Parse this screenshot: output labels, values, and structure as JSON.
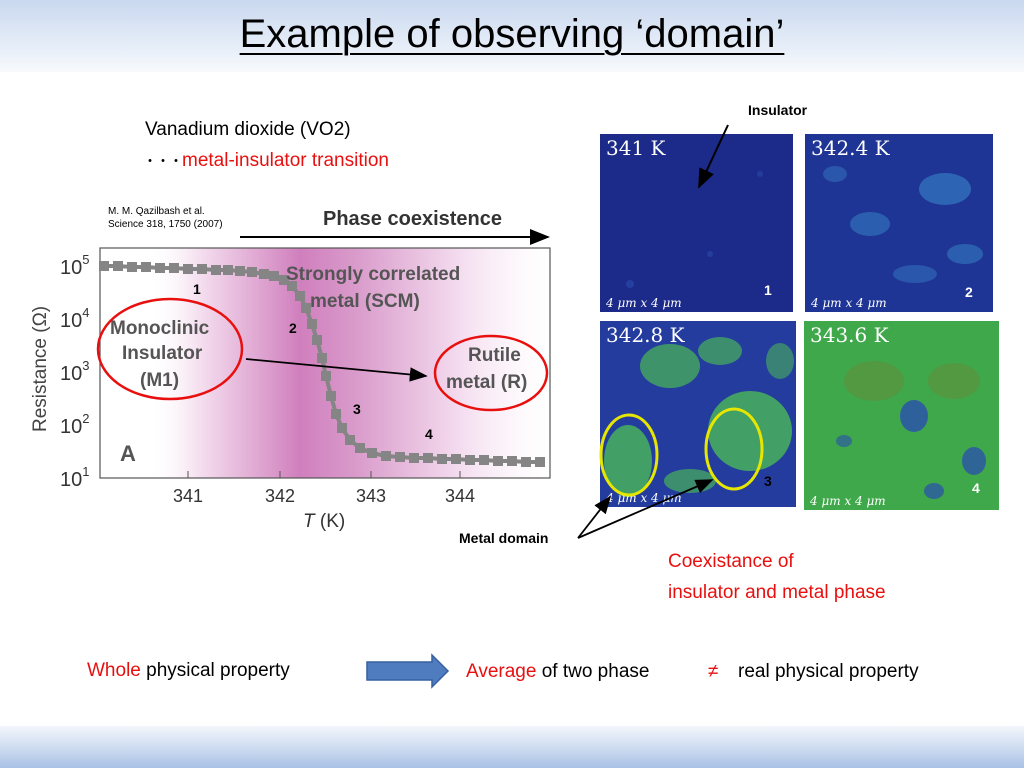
{
  "title": "Example of observing ‘domain’",
  "intro": {
    "line1": "Vanadium dioxide (VO2)",
    "dots": "・・・",
    "line2": "metal-insulator transition"
  },
  "reference": {
    "line1": "M. M. Qazilbash et al.",
    "line2": "Science 318, 1750 (2007)"
  },
  "graph": {
    "phase_label": "Phase coexistence",
    "scm_line1": "Strongly correlated",
    "scm_line2": "metal (SCM)",
    "m1_line1": "Monoclinic",
    "m1_line2": "Insulator",
    "m1_line3": "(M1)",
    "rutile_line1": "Rutile",
    "rutile_line2": "metal (R)",
    "panel_letter": "A",
    "ylabel": "Resistance (Ω)",
    "xlabel_var": "T",
    "xlabel_unit": " (K)",
    "yticks": [
      {
        "base": "10",
        "exp": "5"
      },
      {
        "base": "10",
        "exp": "4"
      },
      {
        "base": "10",
        "exp": "3"
      },
      {
        "base": "10",
        "exp": "2"
      },
      {
        "base": "10",
        "exp": "1"
      }
    ],
    "xticks": [
      "341",
      "342",
      "343",
      "344"
    ],
    "points": [
      "1",
      "2",
      "3",
      "4"
    ]
  },
  "micrographs": {
    "insulator_label": "Insulator",
    "metal_domain_label": "Metal domain",
    "scale_text": "4 μm x 4 μm",
    "panels": [
      {
        "temp": "341 K",
        "num": "1"
      },
      {
        "temp": "342.4 K",
        "num": "2"
      },
      {
        "temp": "342.8 K",
        "num": "3"
      },
      {
        "temp": "343.6 K",
        "num": "4"
      }
    ]
  },
  "coexistence": {
    "line1": "Coexistance of",
    "line2": "insulator and metal phase"
  },
  "conclusion": {
    "whole_red": "Whole",
    "whole_rest": " physical property",
    "average_red": "Average",
    "average_rest": " of two phase",
    "neq": "≠",
    "real": "real physical property"
  },
  "colors": {
    "accent_red": "#e8100f",
    "insulator_blue": "#1c2f8c",
    "metal_green": "#3fa84a",
    "highlight_yellow": "#e6e600",
    "data_gray": "#858585"
  }
}
